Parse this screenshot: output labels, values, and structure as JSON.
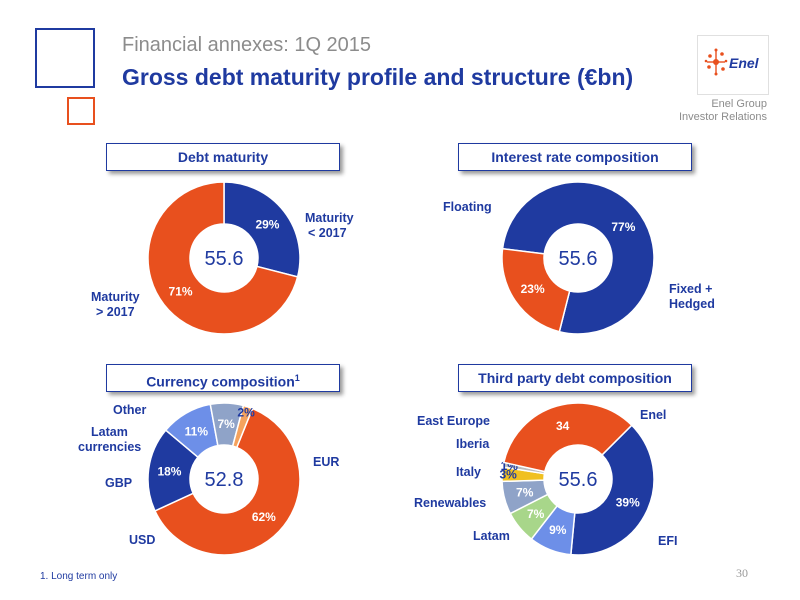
{
  "header": {
    "kicker": "Financial annexes: 1Q 2015",
    "title": "Gross debt maturity profile and structure (€bn)",
    "logo_text": "Enel",
    "group_line1": "Enel Group",
    "group_line2": "Investor Relations"
  },
  "colors": {
    "blue": "#1f3aa0",
    "orange": "#e8501e",
    "light_blue": "#6d8fe8",
    "gray_blue": "#8fa3c8",
    "green": "#a8d68a",
    "yellow": "#f0c020",
    "gray": "#bdbdbd",
    "light_orange": "#f5a25d"
  },
  "chart_data": [
    {
      "type": "pie",
      "title": "Debt maturity",
      "center_value": "55.6",
      "slices": [
        {
          "label": "Maturity < 2017",
          "value": 29,
          "value_label": "29%",
          "color": "#1f3aa0"
        },
        {
          "label": "Maturity > 2017",
          "value": 71,
          "value_label": "71%",
          "color": "#e8501e"
        }
      ]
    },
    {
      "type": "pie",
      "title": "Interest rate composition",
      "center_value": "55.6",
      "slices": [
        {
          "label": "Fixed + Hedged",
          "value": 77,
          "value_label": "77%",
          "color": "#1f3aa0"
        },
        {
          "label": "Floating",
          "value": 23,
          "value_label": "23%",
          "color": "#e8501e"
        }
      ]
    },
    {
      "type": "pie",
      "title": "Currency composition",
      "title_sup": "1",
      "center_value": "52.8",
      "slices": [
        {
          "label": "EUR",
          "value": 62,
          "value_label": "62%",
          "color": "#e8501e"
        },
        {
          "label": "USD",
          "value": 18,
          "value_label": "18%",
          "color": "#1f3aa0"
        },
        {
          "label": "GBP",
          "value": 11,
          "value_label": "11%",
          "color": "#6d8fe8"
        },
        {
          "label": "Latam currencies",
          "value": 7,
          "value_label": "7%",
          "color": "#8fa3c8"
        },
        {
          "label": "Other",
          "value": 2,
          "value_label": "2%",
          "color": "#f5a25d"
        }
      ]
    },
    {
      "type": "pie",
      "title": "Third party debt composition",
      "center_value": "55.6",
      "slices": [
        {
          "label": "EFI",
          "value": 39,
          "value_label": "39%",
          "color": "#1f3aa0"
        },
        {
          "label": "Latam",
          "value": 9,
          "value_label": "9%",
          "color": "#6d8fe8"
        },
        {
          "label": "Renewables",
          "value": 7,
          "value_label": "7%",
          "color": "#a8d68a"
        },
        {
          "label": "Italy",
          "value": 7,
          "value_label": "7%",
          "color": "#8fa3c8"
        },
        {
          "label": "Iberia",
          "value": 3,
          "value_label": "3%",
          "color": "#f0c020"
        },
        {
          "label": "East Europe",
          "value": 1,
          "value_label": "1%",
          "color": "#bdbdbd"
        },
        {
          "label": "Enel",
          "value": 34,
          "value_label": "34",
          "color": "#e8501e"
        }
      ]
    }
  ],
  "labels": {
    "maturity_lt_line1": "Maturity",
    "maturity_lt_line2": "< 2017",
    "maturity_gt_line1": "Maturity",
    "maturity_gt_line2": "> 2017",
    "floating": "Floating",
    "fixed_line1": "Fixed  +",
    "fixed_line2": "Hedged",
    "other": "Other",
    "latam_cur_line1": "Latam",
    "latam_cur_line2": "currencies",
    "gbp": "GBP",
    "usd": "USD",
    "eur": "EUR",
    "east_europe": "East Europe",
    "iberia": "Iberia",
    "italy": "Italy",
    "renewables": "Renewables",
    "latam": "Latam",
    "enel": "Enel",
    "efi": "EFI"
  },
  "footnote": "1.   Long term only",
  "page_number": "30"
}
